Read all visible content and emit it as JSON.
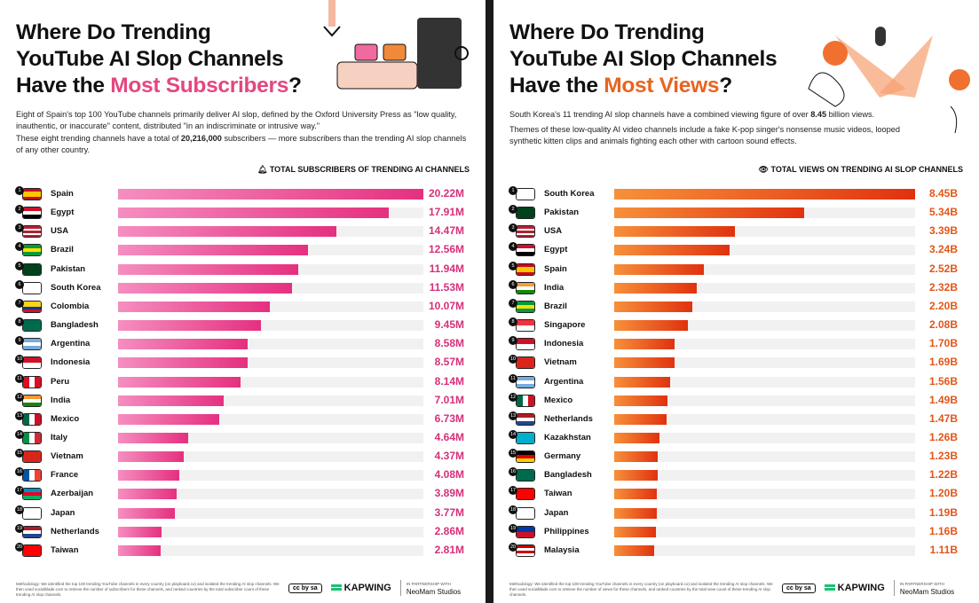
{
  "left": {
    "title_lines": [
      "Where Do Trending",
      "YouTube AI Slop Channels",
      "Have the "
    ],
    "title_highlight": "Most Subscribers",
    "title_end": "?",
    "paragraph1": "Eight of Spain's top 100 YouTube channels primarily deliver AI slop, defined by the Oxford University Press as \"low quality, inauthentic, or inaccurate\" content, distributed \"in an indiscriminate or intrusive way.\"",
    "paragraph2_pre": "These eight trending channels have a total of ",
    "paragraph2_bold": "20,216,000",
    "paragraph2_post": " subscribers — more subscribers than the trending AI slop channels of any other country.",
    "axis_icon": "bell-icon",
    "methodology": "Methodology: We identified the top 100 trending YouTube channels in every country (on playboard.co) and isolated the trending AI slop channels. We then used socialblade.com to retrieve the number of subscribers for these channels, and ranked countries by the total subscriber count of these trending AI slop channels."
  },
  "right": {
    "title_lines": [
      "Where Do Trending",
      "YouTube AI Slop Channels",
      "Have the "
    ],
    "title_highlight": "Most Views",
    "title_end": "?",
    "paragraph1_pre": "South Korea's 11 trending AI slop channels have a combined viewing figure of over ",
    "paragraph1_bold": "8.45",
    "paragraph1_post": " billion views.",
    "paragraph2": "Themes of these low-quality AI video channels include a fake K-pop singer's nonsense music videos, looped synthetic kitten clips and animals fighting each other with cartoon sound effects.",
    "axis_icon": "eye-icon",
    "methodology": "Methodology: We identified the top 100 trending YouTube channels in every country (on playboard.co) and isolated the trending AI slop channels. We then used socialblade.com to retrieve the number of views for these channels, and ranked countries by the total view count of these trending AI slop channels."
  },
  "footer": {
    "cc": "cc by sa",
    "brand": "KAPWING",
    "partner_label": "IN PARTNERSHIP WITH",
    "partner": "NeoMam Studios"
  },
  "chart_data": [
    {
      "type": "bar",
      "orientation": "horizontal",
      "title": "TOTAL SUBSCRIBERS OF TRENDING AI CHANNELS",
      "unit": "M",
      "color": "#e8388a",
      "categories": [
        "Spain",
        "Egypt",
        "USA",
        "Brazil",
        "Pakistan",
        "South Korea",
        "Colombia",
        "Bangladesh",
        "Argentina",
        "Indonesia",
        "Peru",
        "India",
        "Mexico",
        "Italy",
        "Vietnam",
        "France",
        "Azerbaijan",
        "Japan",
        "Netherlands",
        "Taiwan"
      ],
      "values": [
        20.22,
        17.91,
        14.47,
        12.56,
        11.94,
        11.53,
        10.07,
        9.45,
        8.58,
        8.57,
        8.14,
        7.01,
        6.73,
        4.64,
        4.37,
        4.08,
        3.89,
        3.77,
        2.86,
        2.81
      ],
      "labels": [
        "20.22M",
        "17.91M",
        "14.47M",
        "12.56M",
        "11.94M",
        "11.53M",
        "10.07M",
        "9.45M",
        "8.58M",
        "8.57M",
        "8.14M",
        "7.01M",
        "6.73M",
        "4.64M",
        "4.37M",
        "4.08M",
        "3.89M",
        "3.77M",
        "2.86M",
        "2.81M"
      ]
    },
    {
      "type": "bar",
      "orientation": "horizontal",
      "title": "TOTAL VIEWS ON TRENDING AI SLOP CHANNELS",
      "unit": "B",
      "color": "#ee5a1a",
      "categories": [
        "South Korea",
        "Pakistan",
        "USA",
        "Egypt",
        "Spain",
        "India",
        "Brazil",
        "Singapore",
        "Indonesia",
        "Vietnam",
        "Argentina",
        "Mexico",
        "Netherlands",
        "Kazakhstan",
        "Germany",
        "Bangladesh",
        "Taiwan",
        "Japan",
        "Philippines",
        "Malaysia"
      ],
      "values": [
        8.45,
        5.34,
        3.39,
        3.24,
        2.52,
        2.32,
        2.2,
        2.08,
        1.7,
        1.69,
        1.56,
        1.49,
        1.47,
        1.26,
        1.23,
        1.22,
        1.2,
        1.19,
        1.16,
        1.11
      ],
      "labels": [
        "8.45B",
        "5.34B",
        "3.39B",
        "3.24B",
        "2.52B",
        "2.32B",
        "2.20B",
        "2.08B",
        "1.70B",
        "1.69B",
        "1.56B",
        "1.49B",
        "1.47B",
        "1.26B",
        "1.23B",
        "1.22B",
        "1.20B",
        "1.19B",
        "1.16B",
        "1.11B"
      ]
    }
  ]
}
